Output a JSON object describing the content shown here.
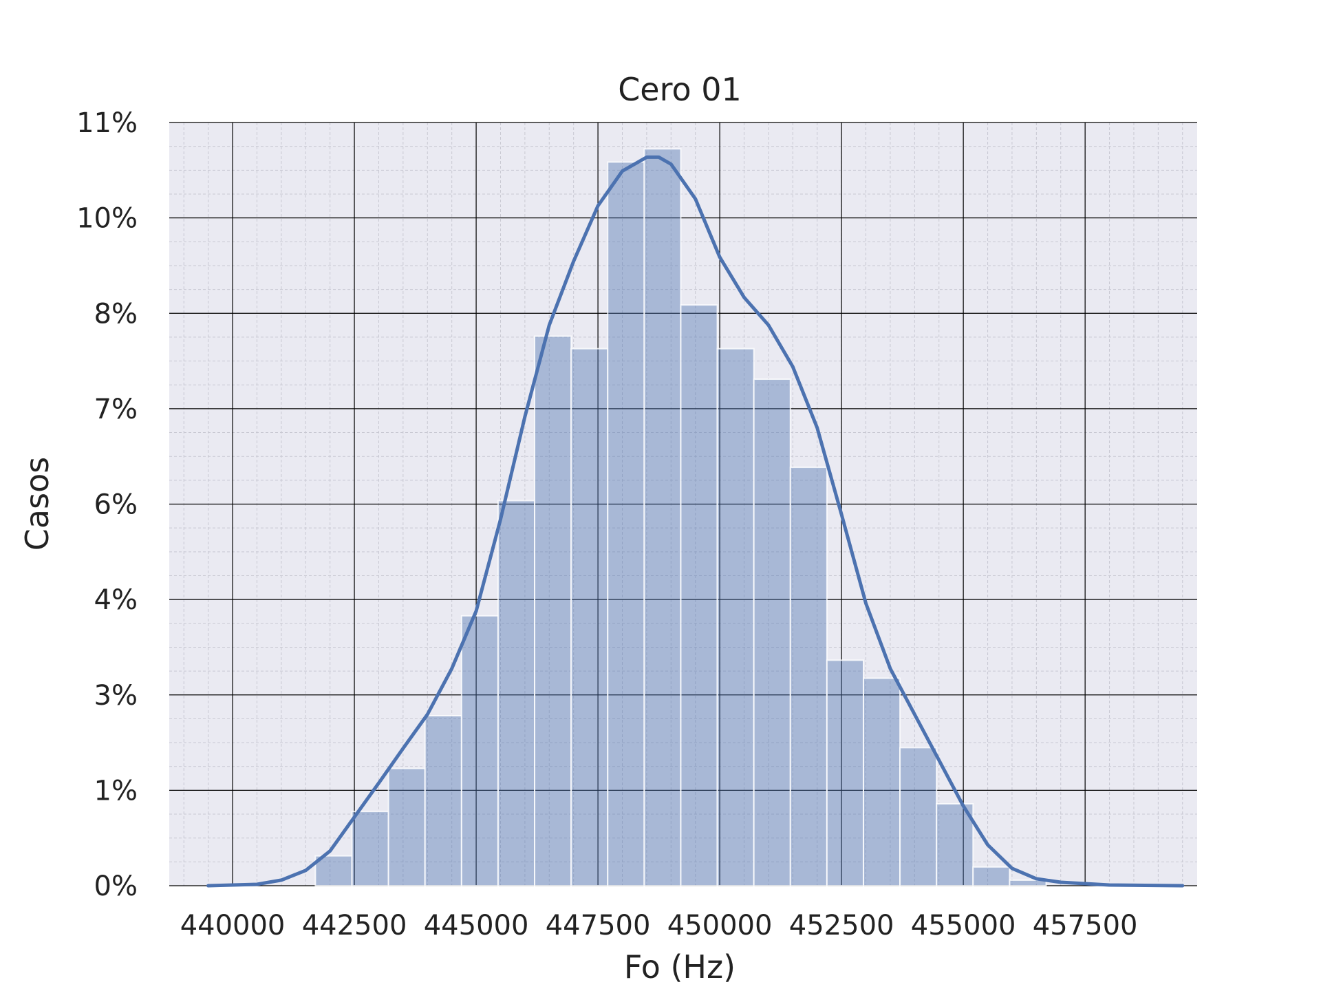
{
  "chart_data": {
    "type": "bar",
    "title": "Cero 01",
    "xlabel": "Fo (Hz)",
    "ylabel": "Casos",
    "x_ticks": [
      "440000",
      "442500",
      "445000",
      "447500",
      "450000",
      "452500",
      "455000",
      "457500"
    ],
    "y_ticks": [
      "0%",
      "1%",
      "3%",
      "4%",
      "6%",
      "7%",
      "8%",
      "10%",
      "11%"
    ],
    "xlim": [
      438700,
      459800
    ],
    "ylim": [
      0,
      0.11
    ],
    "grid": true,
    "colors": {
      "bars": "#4c72b0",
      "kde": "#4c72b0",
      "background": "#eaeaf2",
      "major_grid": "#000000",
      "minor_grid": "#c8c8d2"
    },
    "bins": [
      {
        "x0": 441700,
        "x1": 442450,
        "value": 0.0043
      },
      {
        "x0": 442450,
        "x1": 443200,
        "value": 0.0107
      },
      {
        "x0": 443200,
        "x1": 443950,
        "value": 0.0169
      },
      {
        "x0": 443950,
        "x1": 444700,
        "value": 0.0245
      },
      {
        "x0": 444700,
        "x1": 445450,
        "value": 0.0389
      },
      {
        "x0": 445450,
        "x1": 446200,
        "value": 0.0555
      },
      {
        "x0": 446200,
        "x1": 446950,
        "value": 0.0792
      },
      {
        "x0": 446950,
        "x1": 447700,
        "value": 0.0774
      },
      {
        "x0": 447700,
        "x1": 448450,
        "value": 0.1043
      },
      {
        "x0": 448450,
        "x1": 449200,
        "value": 0.1062
      },
      {
        "x0": 449200,
        "x1": 449950,
        "value": 0.0837
      },
      {
        "x0": 449950,
        "x1": 450700,
        "value": 0.0774
      },
      {
        "x0": 450700,
        "x1": 451450,
        "value": 0.073
      },
      {
        "x0": 451450,
        "x1": 452200,
        "value": 0.0603
      },
      {
        "x0": 452200,
        "x1": 452950,
        "value": 0.0325
      },
      {
        "x0": 452950,
        "x1": 453700,
        "value": 0.0299
      },
      {
        "x0": 453700,
        "x1": 454450,
        "value": 0.0199
      },
      {
        "x0": 454450,
        "x1": 455200,
        "value": 0.0118
      },
      {
        "x0": 455200,
        "x1": 455950,
        "value": 0.0027
      },
      {
        "x0": 455950,
        "x1": 456700,
        "value": 0.0008
      }
    ],
    "kde": {
      "x": [
        439500,
        440500,
        441000,
        441500,
        442000,
        442500,
        443000,
        443500,
        444000,
        444500,
        445000,
        445500,
        446000,
        446500,
        447000,
        447500,
        448000,
        448500,
        448750,
        449000,
        449500,
        450000,
        450500,
        451000,
        451500,
        452000,
        452500,
        453000,
        453500,
        454000,
        454500,
        455000,
        455500,
        456000,
        456500,
        457000,
        458000,
        459500
      ],
      "y": [
        0.0,
        0.0002,
        0.0008,
        0.0022,
        0.005,
        0.0099,
        0.0148,
        0.0198,
        0.0247,
        0.0313,
        0.0396,
        0.0528,
        0.0676,
        0.0808,
        0.09,
        0.098,
        0.103,
        0.105,
        0.105,
        0.104,
        0.099,
        0.0906,
        0.0848,
        0.0808,
        0.0748,
        0.066,
        0.0535,
        0.0407,
        0.0313,
        0.0247,
        0.0181,
        0.0115,
        0.0059,
        0.0025,
        0.001,
        0.0005,
        0.0001,
        0.0
      ]
    }
  }
}
